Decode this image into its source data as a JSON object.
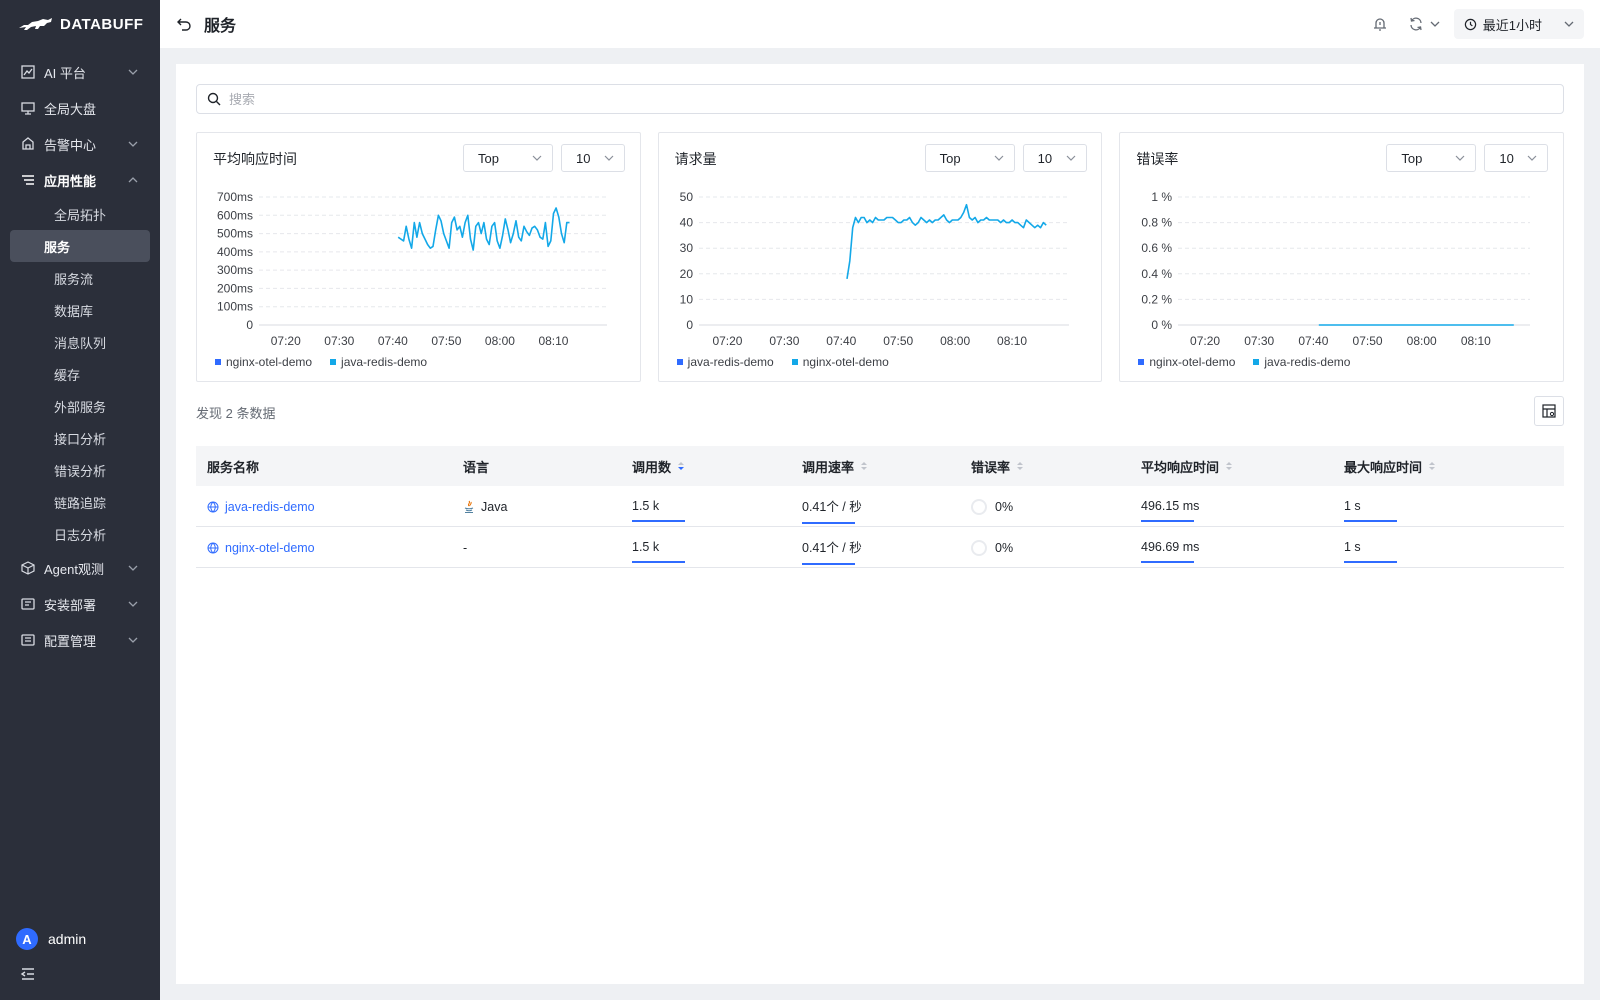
{
  "brand": "DATABUFF",
  "sidebar": {
    "items": [
      {
        "label": "AI 平台",
        "icon": "ai-icon",
        "expandable": true
      },
      {
        "label": "全局大盘",
        "icon": "dashboard-icon",
        "expandable": false
      },
      {
        "label": "告警中心",
        "icon": "alert-icon",
        "expandable": true
      },
      {
        "label": "应用性能",
        "icon": "apm-icon",
        "expandable": true,
        "open": true,
        "children": [
          "全局拓扑",
          "服务",
          "服务流",
          "数据库",
          "消息队列",
          "缓存",
          "外部服务",
          "接口分析",
          "错误分析",
          "链路追踪",
          "日志分析"
        ],
        "active_child": "服务"
      },
      {
        "label": "Agent观测",
        "icon": "agent-icon",
        "expandable": true
      },
      {
        "label": "安装部署",
        "icon": "install-icon",
        "expandable": true
      },
      {
        "label": "配置管理",
        "icon": "config-icon",
        "expandable": true
      }
    ],
    "user": {
      "initial": "A",
      "name": "admin"
    }
  },
  "topbar": {
    "title": "服务",
    "time_range": "最近1小时"
  },
  "search": {
    "placeholder": "搜索"
  },
  "colors": {
    "accent": "#2f6bff",
    "series_dark": "#2f6bff",
    "series_light": "#13a8e8",
    "sidebar_bg": "#2b2f3a"
  },
  "charts": [
    {
      "title": "平均响应时间",
      "mode": "Top",
      "count": "10",
      "legend": [
        {
          "name": "nginx-otel-demo",
          "color": "#2f6bff"
        },
        {
          "name": "java-redis-demo",
          "color": "#13a8e8"
        }
      ]
    },
    {
      "title": "请求量",
      "mode": "Top",
      "count": "10",
      "legend": [
        {
          "name": "java-redis-demo",
          "color": "#2f6bff"
        },
        {
          "name": "nginx-otel-demo",
          "color": "#13a8e8"
        }
      ]
    },
    {
      "title": "错误率",
      "mode": "Top",
      "count": "10",
      "legend": [
        {
          "name": "nginx-otel-demo",
          "color": "#2f6bff"
        },
        {
          "name": "java-redis-demo",
          "color": "#13a8e8"
        }
      ]
    }
  ],
  "chart_data": [
    {
      "type": "line",
      "title": "平均响应时间",
      "yticks": [
        "0",
        "100ms",
        "200ms",
        "300ms",
        "400ms",
        "500ms",
        "600ms",
        "700ms"
      ],
      "ylim": [
        0,
        700
      ],
      "xticks": [
        "07:20",
        "07:30",
        "07:40",
        "07:50",
        "08:00",
        "08:10"
      ],
      "xlim": [
        "07:15",
        "08:20"
      ],
      "series": [
        {
          "name": "java-redis-demo",
          "x_start": "07:41",
          "x_step_min": 0.5,
          "values": [
            480,
            470,
            460,
            540,
            470,
            420,
            560,
            480,
            560,
            500,
            470,
            440,
            420,
            430,
            520,
            600,
            570,
            500,
            460,
            420,
            560,
            590,
            520,
            540,
            480,
            560,
            600,
            470,
            410,
            540,
            560,
            500,
            560,
            470,
            440,
            540,
            560,
            460,
            420,
            490,
            580,
            520,
            450,
            500,
            570,
            480,
            460,
            540,
            510,
            490,
            530,
            540,
            520,
            480,
            470,
            560,
            430,
            460,
            610,
            640,
            590,
            500,
            450,
            560,
            560
          ]
        }
      ]
    },
    {
      "type": "line",
      "title": "请求量",
      "yticks": [
        "0",
        "10",
        "20",
        "30",
        "40",
        "50"
      ],
      "ylim": [
        0,
        50
      ],
      "xticks": [
        "07:20",
        "07:30",
        "07:40",
        "07:50",
        "08:00",
        "08:10"
      ],
      "xlim": [
        "07:15",
        "08:20"
      ],
      "series": [
        {
          "name": "nginx-otel-demo",
          "x_start": "07:41",
          "x_step_min": 0.5,
          "values": [
            18,
            25,
            38,
            42,
            40,
            42,
            42,
            40,
            41,
            40,
            42,
            41,
            41,
            41,
            42,
            42,
            42,
            41,
            40,
            40,
            41,
            41,
            42,
            40,
            39,
            40,
            42,
            41,
            40,
            41,
            40,
            41,
            41,
            42,
            43,
            41,
            40,
            41,
            41,
            41,
            42,
            44,
            47,
            42,
            41,
            42,
            40,
            41,
            41,
            42,
            41,
            41,
            41,
            41,
            40,
            41,
            40,
            40,
            41,
            40,
            40,
            39,
            38,
            41,
            40,
            39,
            38,
            39,
            38,
            40,
            39
          ]
        }
      ]
    },
    {
      "type": "line",
      "title": "错误率",
      "yticks": [
        "0 %",
        "0.2 %",
        "0.4 %",
        "0.6 %",
        "0.8 %",
        "1 %"
      ],
      "ylim": [
        0,
        1
      ],
      "xticks": [
        "07:20",
        "07:30",
        "07:40",
        "07:50",
        "08:00",
        "08:10"
      ],
      "xlim": [
        "07:15",
        "08:20"
      ],
      "series": [
        {
          "name": "java-redis-demo",
          "x_start": "07:41",
          "x_step_min": 1,
          "values": [
            0,
            0,
            0,
            0,
            0,
            0,
            0,
            0,
            0,
            0,
            0,
            0,
            0,
            0,
            0,
            0,
            0,
            0,
            0,
            0,
            0,
            0,
            0,
            0,
            0,
            0,
            0,
            0,
            0,
            0,
            0,
            0,
            0,
            0,
            0,
            0,
            0
          ]
        }
      ]
    }
  ],
  "table": {
    "found_text": "发现 2 条数据",
    "columns": [
      "服务名称",
      "语言",
      "调用数",
      "调用速率",
      "错误率",
      "平均响应时间",
      "最大响应时间"
    ],
    "rows": [
      {
        "name": "java-redis-demo",
        "language": "Java",
        "calls": "1.5 k",
        "rate": "0.41个 / 秒",
        "error": "0%",
        "avg": "496.15 ms",
        "max": "1 s"
      },
      {
        "name": "nginx-otel-demo",
        "language": "-",
        "calls": "1.5 k",
        "rate": "0.41个 / 秒",
        "error": "0%",
        "avg": "496.69 ms",
        "max": "1 s"
      }
    ]
  }
}
